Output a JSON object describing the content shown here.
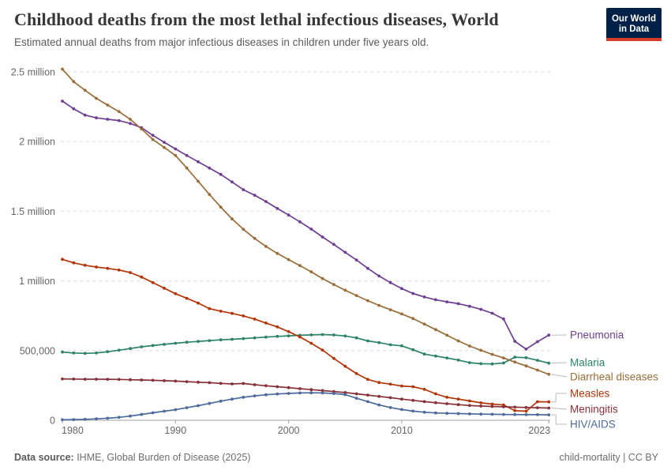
{
  "header": {
    "title": "Childhood deaths from the most lethal infectious diseases, World",
    "subtitle": "Estimated annual deaths from major infectious diseases in children under five years old.",
    "logo": {
      "line1": "Our World",
      "line2": "in Data",
      "bg_color": "#002147",
      "bar_color": "#d93b2b"
    }
  },
  "chart_data": {
    "type": "line",
    "title": "Childhood deaths from the most lethal infectious diseases, World",
    "xlabel": "",
    "ylabel": "",
    "x": [
      1980,
      1981,
      1982,
      1983,
      1984,
      1985,
      1986,
      1987,
      1988,
      1989,
      1990,
      1991,
      1992,
      1993,
      1994,
      1995,
      1996,
      1997,
      1998,
      1999,
      2000,
      2001,
      2002,
      2003,
      2004,
      2005,
      2006,
      2007,
      2008,
      2009,
      2010,
      2011,
      2012,
      2013,
      2014,
      2015,
      2016,
      2017,
      2018,
      2019,
      2020,
      2021,
      2022,
      2023
    ],
    "x_tick_labels": [
      "1980",
      "1990",
      "2000",
      "2010",
      "2023"
    ],
    "x_tick_years": [
      1980,
      1990,
      2000,
      2010,
      2023
    ],
    "y_tick_labels": [
      "0",
      "500,000",
      "1 million",
      "1.5 million",
      "2 million",
      "2.5 million"
    ],
    "y_tick_values": [
      0,
      500000,
      1000000,
      1500000,
      2000000,
      2500000
    ],
    "ylim": [
      0,
      2500000
    ],
    "xlim": [
      1980,
      2023
    ],
    "grid": "horizontal-dashed",
    "legend_position": "right-of-line-ends",
    "series": [
      {
        "name": "Pneumonia",
        "color": "#6d3e91",
        "values": [
          2290000,
          2235000,
          2190000,
          2170000,
          2160000,
          2151000,
          2130000,
          2100000,
          2045000,
          1995000,
          1947000,
          1900000,
          1855000,
          1810000,
          1765000,
          1710000,
          1655000,
          1615000,
          1570000,
          1520000,
          1473000,
          1424000,
          1372000,
          1315000,
          1262000,
          1205000,
          1150000,
          1090000,
          1035000,
          988000,
          945000,
          910000,
          885000,
          865000,
          850000,
          837000,
          818000,
          796000,
          768000,
          727000,
          567000,
          511000,
          564000,
          611000
        ]
      },
      {
        "name": "Malaria",
        "color": "#2c8465",
        "values": [
          490000,
          483000,
          480000,
          483000,
          492000,
          503000,
          515000,
          527000,
          536000,
          545000,
          553000,
          560000,
          566000,
          572000,
          577000,
          581000,
          586000,
          591000,
          597000,
          602000,
          606000,
          610000,
          613000,
          615000,
          612000,
          605000,
          591000,
          570000,
          557000,
          542000,
          534000,
          506000,
          475000,
          461000,
          447000,
          432000,
          413000,
          406000,
          404000,
          411000,
          453000,
          449000,
          430000,
          410000
        ]
      },
      {
        "name": "Diarrheal diseases",
        "color": "#996d39",
        "values": [
          2520000,
          2430000,
          2368000,
          2310000,
          2262000,
          2215000,
          2160000,
          2090000,
          2015000,
          1958000,
          1900000,
          1810000,
          1715000,
          1620000,
          1530000,
          1445000,
          1370000,
          1305000,
          1248000,
          1197000,
          1153000,
          1110000,
          1065000,
          1017000,
          974000,
          933000,
          895000,
          858000,
          824000,
          793000,
          763000,
          730000,
          690000,
          651000,
          610000,
          570000,
          533000,
          502000,
          473000,
          447000,
          418000,
          390000,
          360000,
          330000
        ]
      },
      {
        "name": "Measles",
        "color": "#b13507",
        "values": [
          1155000,
          1130000,
          1112000,
          1100000,
          1090000,
          1078000,
          1060000,
          1028000,
          988000,
          948000,
          908000,
          875000,
          841000,
          801000,
          783000,
          767000,
          749000,
          726000,
          698000,
          670000,
          636000,
          598000,
          553000,
          504000,
          444000,
          388000,
          335000,
          293000,
          271000,
          259000,
          246000,
          241000,
          222000,
          190000,
          165000,
          152000,
          139000,
          125000,
          116000,
          110000,
          69000,
          65000,
          133000,
          132000
        ]
      },
      {
        "name": "Meningitis",
        "color": "#883039",
        "values": [
          297000,
          296000,
          295000,
          295000,
          294000,
          293000,
          291000,
          289000,
          287000,
          284000,
          281000,
          277000,
          273000,
          270000,
          265000,
          261000,
          264000,
          255000,
          248000,
          241000,
          234000,
          227000,
          220000,
          213000,
          206000,
          199000,
          190000,
          181000,
          171000,
          162000,
          152000,
          143000,
          134000,
          126000,
          119000,
          112000,
          106000,
          102000,
          99000,
          97000,
          94000,
          92000,
          90000,
          88000
        ]
      },
      {
        "name": "HIV/AIDS",
        "color": "#4c6a9c",
        "values": [
          4000,
          5000,
          7000,
          10000,
          15000,
          21000,
          30000,
          42000,
          54000,
          65000,
          76000,
          90000,
          105000,
          121000,
          137000,
          152000,
          165000,
          175000,
          183000,
          189000,
          193000,
          196000,
          197000,
          196000,
          192000,
          184000,
          158000,
          134000,
          110000,
          91000,
          77000,
          66000,
          58000,
          53000,
          50000,
          48000,
          46000,
          44000,
          43000,
          42000,
          41000,
          40000,
          40000,
          39000
        ]
      }
    ]
  },
  "footer": {
    "source_label": "Data source:",
    "source_value": " IHME, Global Burden of Disease (2025)",
    "note": "child-mortality | CC BY"
  }
}
